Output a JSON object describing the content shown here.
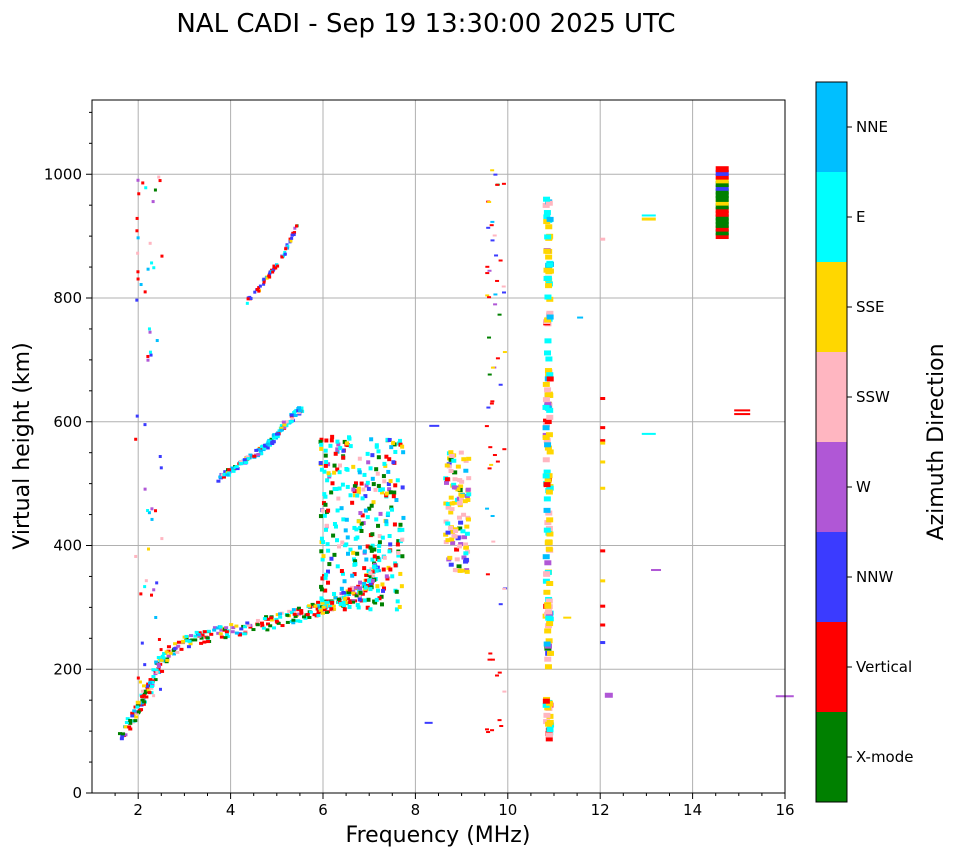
{
  "chart_data": {
    "type": "scatter",
    "title": "NAL CADI - Sep 19 13:30:00 2025 UTC",
    "xlabel": "Frequency (MHz)",
    "ylabel": "Virtual height (km)",
    "xlim": [
      1,
      16
    ],
    "ylim": [
      0,
      1120
    ],
    "xticks": [
      2,
      4,
      6,
      8,
      10,
      12,
      14,
      16
    ],
    "yticks": [
      0,
      200,
      400,
      600,
      800,
      1000
    ],
    "grid": true,
    "colorbar": {
      "label": "Azimuth Direction",
      "categories": [
        {
          "name": "X-mode",
          "color": "#008000"
        },
        {
          "name": "Vertical",
          "color": "#ff0000"
        },
        {
          "name": "NNW",
          "color": "#3b3bff"
        },
        {
          "name": "W",
          "color": "#b057d6"
        },
        {
          "name": "SSW",
          "color": "#ffb6c1"
        },
        {
          "name": "SSE",
          "color": "#ffd700"
        },
        {
          "name": "E",
          "color": "#00ffff"
        },
        {
          "name": "NNE",
          "color": "#00bfff"
        }
      ]
    },
    "series": [
      {
        "name": "F1/F2 trace",
        "x": [
          1.6,
          1.9,
          2.1,
          2.3,
          2.5,
          2.8,
          3.1,
          3.5,
          4.0,
          4.5,
          5.0,
          5.5,
          5.9,
          6.2,
          6.5,
          6.8,
          7.0,
          7.2
        ],
        "y": [
          100,
          130,
          160,
          190,
          220,
          240,
          250,
          258,
          265,
          272,
          282,
          292,
          302,
          310,
          318,
          330,
          350,
          380
        ]
      },
      {
        "name": "Second hop",
        "x": [
          3.7,
          4.0,
          4.3,
          4.6,
          4.9,
          5.1,
          5.3,
          5.5
        ],
        "y": [
          510,
          525,
          540,
          555,
          575,
          595,
          610,
          625
        ]
      },
      {
        "name": "Third hop",
        "x": [
          4.3,
          4.6,
          4.8,
          5.0,
          5.2,
          5.4
        ],
        "y": [
          795,
          820,
          840,
          860,
          885,
          920
        ]
      },
      {
        "name": "Spread F",
        "x": [
          6.0,
          6.3,
          6.6,
          6.9,
          7.2,
          7.5,
          7.7
        ],
        "y": [
          420,
          470,
          520,
          560,
          500,
          450,
          420
        ]
      },
      {
        "name": "Column 9 MHz",
        "x": [
          8.7,
          8.9,
          9.1
        ],
        "y": [
          380,
          450,
          520
        ]
      },
      {
        "name": "Column 10.8 MHz",
        "x": [
          10.8,
          10.8,
          10.8
        ],
        "y": [
          100,
          450,
          950
        ]
      },
      {
        "name": "Block 14.7 MHz",
        "x": [
          14.65
        ],
        "y": [
          960
        ]
      }
    ]
  }
}
